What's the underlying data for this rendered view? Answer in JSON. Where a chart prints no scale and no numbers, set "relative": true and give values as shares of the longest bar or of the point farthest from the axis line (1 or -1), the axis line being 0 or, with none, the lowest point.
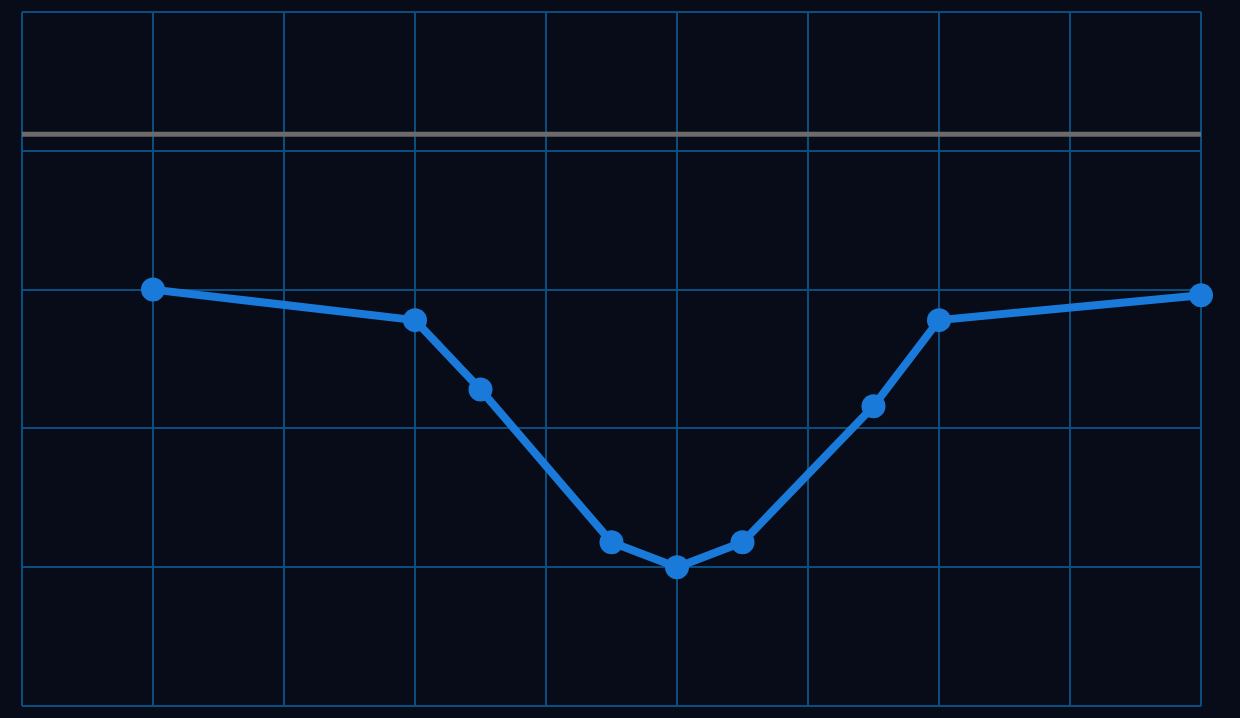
{
  "chart_data": {
    "type": "line",
    "relative": true,
    "categories": [
      null,
      null,
      null,
      null,
      null,
      null,
      null,
      null,
      null,
      null,
      null,
      null,
      null,
      null,
      null,
      null,
      null,
      null,
      null
    ],
    "tick_labels": false,
    "grid": true,
    "legend": false,
    "marker": "circle",
    "series": [
      {
        "color": "#1a7ad9",
        "values": [
          null,
          null,
          1.0,
          null,
          null,
          null,
          0.89,
          0.64,
          null,
          0.09,
          0,
          0.09,
          null,
          0.58,
          0.89,
          null,
          null,
          null,
          0.98
        ]
      }
    ],
    "ref_lines": [
      {
        "axis": "y",
        "value": 1.56,
        "color": "#6b6b6b"
      }
    ]
  }
}
